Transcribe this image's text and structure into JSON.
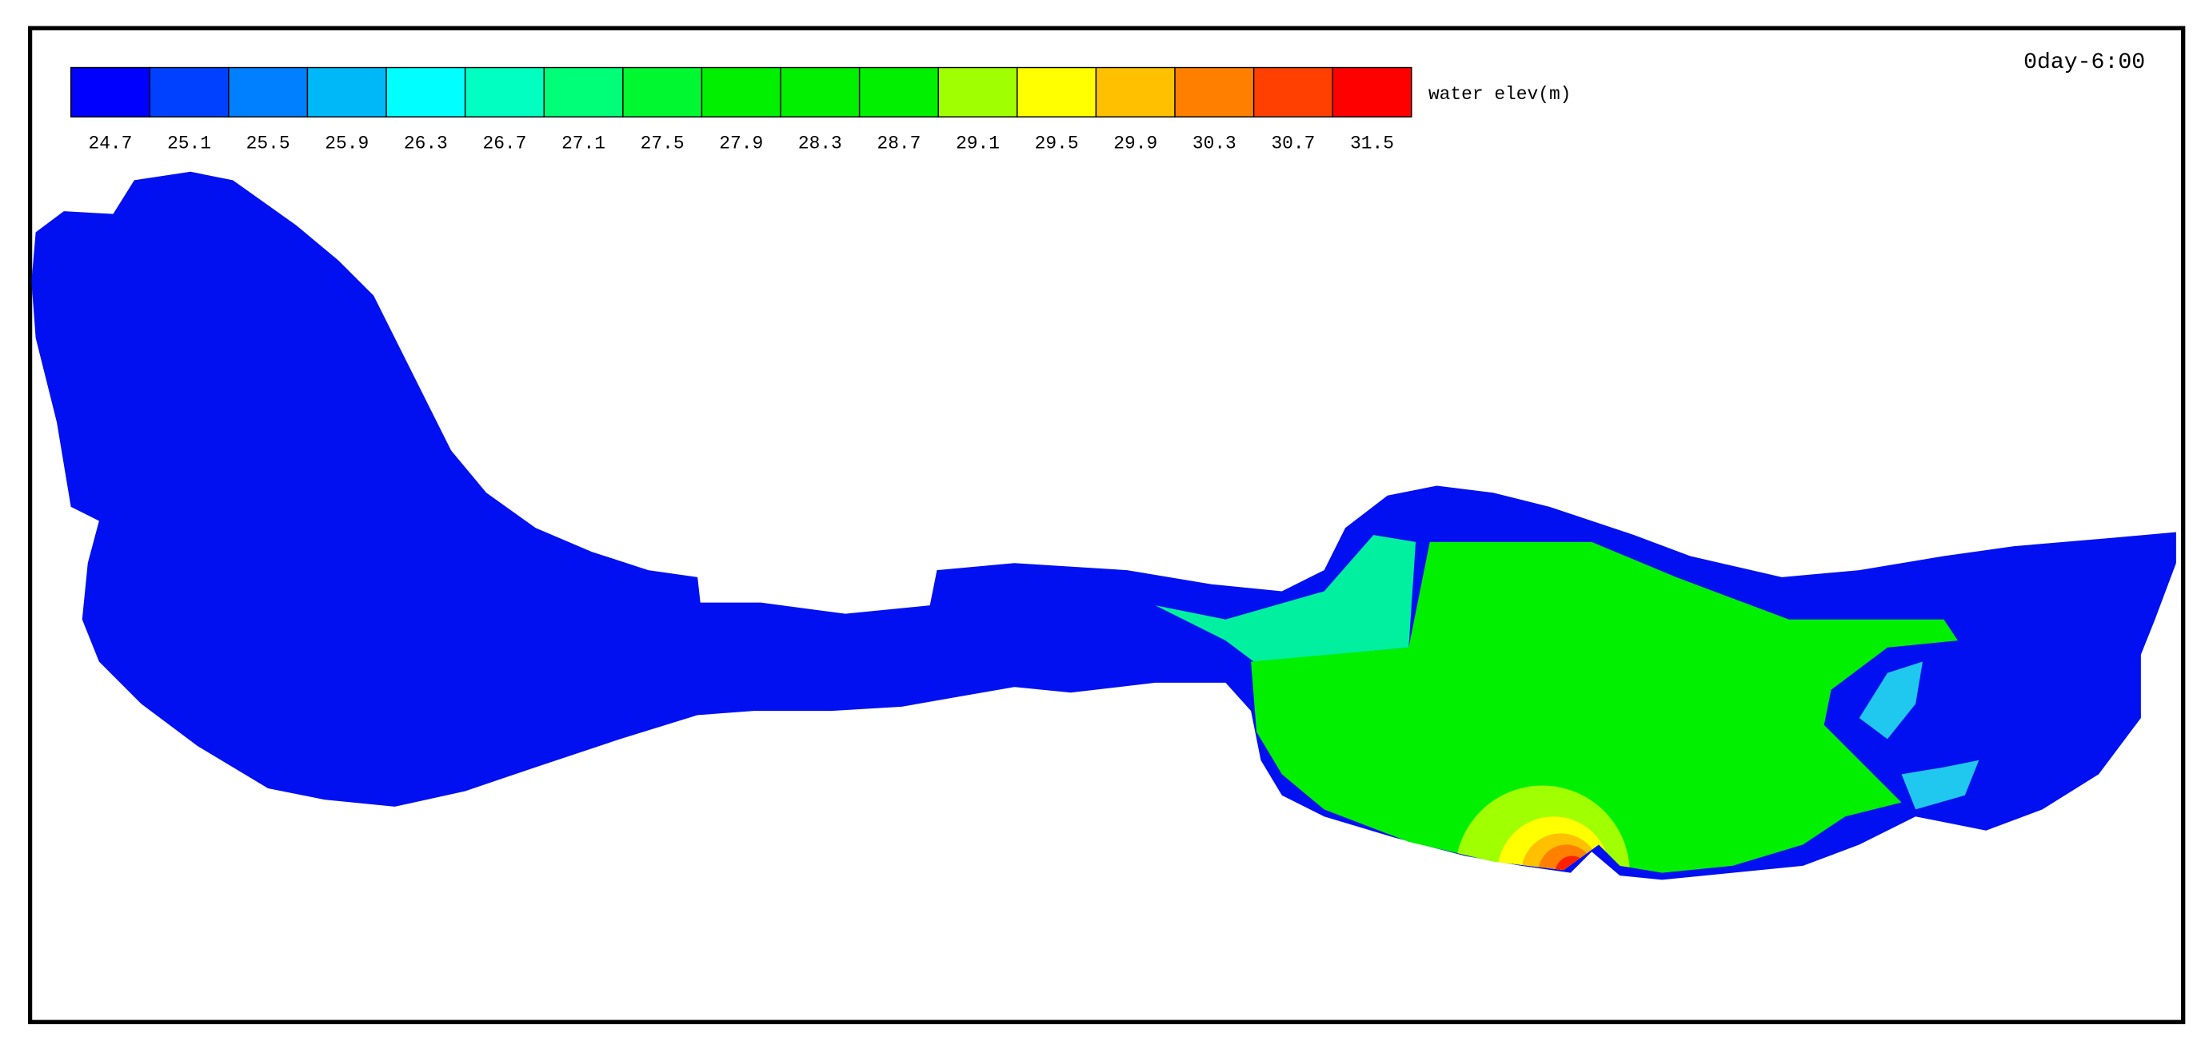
{
  "timestamp": "0day-6:00",
  "colorbar": {
    "label": "water elev(m)",
    "levels": [
      {
        "label": "24.7",
        "color": "#0000ff"
      },
      {
        "label": "25.1",
        "color": "#0040ff"
      },
      {
        "label": "25.5",
        "color": "#0080ff"
      },
      {
        "label": "25.9",
        "color": "#00b8f8"
      },
      {
        "label": "26.3",
        "color": "#00ffff"
      },
      {
        "label": "26.7",
        "color": "#00ffc0"
      },
      {
        "label": "27.1",
        "color": "#00ff78"
      },
      {
        "label": "27.5",
        "color": "#00f830"
      },
      {
        "label": "27.9",
        "color": "#00f000"
      },
      {
        "label": "28.3",
        "color": "#00f000"
      },
      {
        "label": "28.7",
        "color": "#00f000"
      },
      {
        "label": "29.1",
        "color": "#a0ff00"
      },
      {
        "label": "29.5",
        "color": "#ffff00"
      },
      {
        "label": "29.9",
        "color": "#ffc000"
      },
      {
        "label": "30.3",
        "color": "#ff8000"
      },
      {
        "label": "30.7",
        "color": "#ff4000"
      },
      {
        "label": "31.5",
        "color": "#ff0000"
      }
    ]
  }
}
